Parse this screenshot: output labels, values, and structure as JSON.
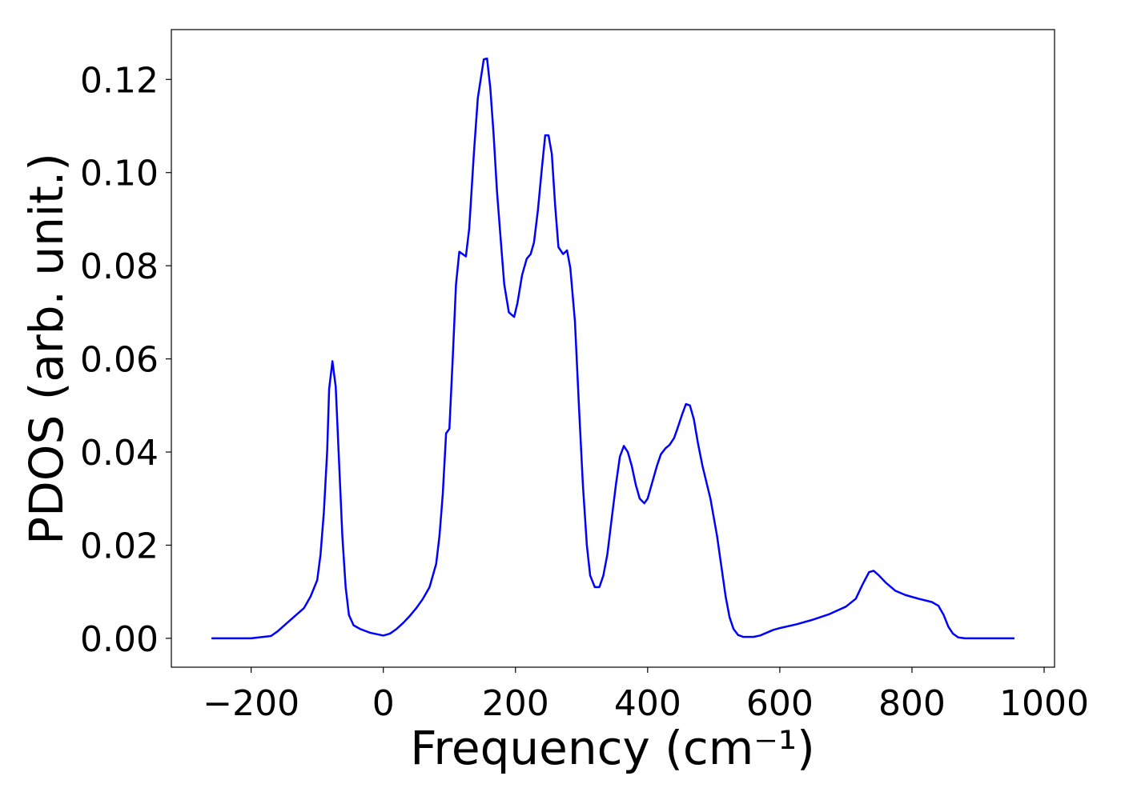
{
  "chart_data": {
    "type": "line",
    "xlabel": "Frequency (cm⁻¹)",
    "ylabel": "PDOS (arb. unit.)",
    "xlim": [
      -320.75,
      1015.75
    ],
    "ylim": [
      -0.0062,
      0.1307
    ],
    "xticks": [
      {
        "value": -200,
        "label": "−200"
      },
      0,
      200,
      400,
      600,
      800,
      1000
    ],
    "yticks": [
      {
        "value": 0,
        "label": "0.00"
      },
      {
        "value": 0.02,
        "label": "0.02"
      },
      {
        "value": 0.04,
        "label": "0.04"
      },
      {
        "value": 0.06,
        "label": "0.06"
      },
      {
        "value": 0.08,
        "label": "0.08"
      },
      {
        "value": 0.1,
        "label": "0.10"
      },
      {
        "value": 0.12,
        "label": "0.12"
      }
    ],
    "grid": false,
    "series": [
      {
        "color": "#0000ff",
        "x": [
          -260,
          -200,
          -170,
          -160,
          -140,
          -120,
          -110,
          -100,
          -95,
          -90,
          -85,
          -82,
          -77,
          -72,
          -67,
          -62,
          -57,
          -52,
          -45,
          -35,
          -20,
          0,
          10,
          20,
          30,
          40,
          50,
          60,
          70,
          80,
          85,
          90,
          95,
          100,
          105,
          110,
          115,
          125,
          130,
          137,
          143,
          152,
          157,
          162,
          167,
          172,
          178,
          183,
          190,
          198,
          203,
          210,
          217,
          223,
          228,
          234,
          240,
          245,
          250,
          255,
          260,
          265,
          272,
          278,
          283,
          290,
          296,
          302,
          308,
          313,
          320,
          327,
          333,
          339,
          345,
          352,
          358,
          364,
          370,
          376,
          382,
          388,
          395,
          400,
          408,
          414,
          420,
          427,
          433,
          440,
          445,
          452,
          458,
          464,
          470,
          476,
          483,
          495,
          505,
          512,
          518,
          524,
          530,
          537,
          545,
          560,
          570,
          580,
          590,
          600,
          625,
          650,
          675,
          700,
          715,
          725,
          735,
          742,
          750,
          760,
          775,
          790,
          810,
          830,
          840,
          848,
          855,
          862,
          870,
          880,
          955
        ],
        "values": [
          0,
          0,
          0.0005,
          0.0015,
          0.004,
          0.0065,
          0.009,
          0.0125,
          0.018,
          0.027,
          0.04,
          0.0535,
          0.0595,
          0.054,
          0.038,
          0.022,
          0.011,
          0.005,
          0.0028,
          0.002,
          0.0012,
          0.0006,
          0.001,
          0.002,
          0.0033,
          0.0048,
          0.0065,
          0.0085,
          0.011,
          0.016,
          0.022,
          0.031,
          0.044,
          0.045,
          0.06,
          0.076,
          0.083,
          0.082,
          0.088,
          0.104,
          0.116,
          0.1243,
          0.1245,
          0.118,
          0.108,
          0.096,
          0.085,
          0.076,
          0.07,
          0.069,
          0.072,
          0.078,
          0.0815,
          0.0825,
          0.085,
          0.092,
          0.101,
          0.108,
          0.108,
          0.104,
          0.093,
          0.084,
          0.0825,
          0.0833,
          0.0795,
          0.068,
          0.05,
          0.033,
          0.02,
          0.0135,
          0.011,
          0.011,
          0.0135,
          0.018,
          0.025,
          0.033,
          0.039,
          0.0413,
          0.04,
          0.037,
          0.033,
          0.03,
          0.029,
          0.03,
          0.034,
          0.037,
          0.0395,
          0.0408,
          0.0415,
          0.043,
          0.045,
          0.048,
          0.0503,
          0.05,
          0.047,
          0.042,
          0.037,
          0.03,
          0.022,
          0.015,
          0.009,
          0.0045,
          0.002,
          0.0007,
          0.0003,
          0.0003,
          0.0006,
          0.0012,
          0.0018,
          0.0022,
          0.003,
          0.004,
          0.0052,
          0.0068,
          0.0085,
          0.0115,
          0.0142,
          0.0145,
          0.0135,
          0.012,
          0.0102,
          0.0093,
          0.0085,
          0.0078,
          0.007,
          0.005,
          0.0025,
          0.001,
          0.0002,
          0,
          0
        ]
      }
    ]
  }
}
